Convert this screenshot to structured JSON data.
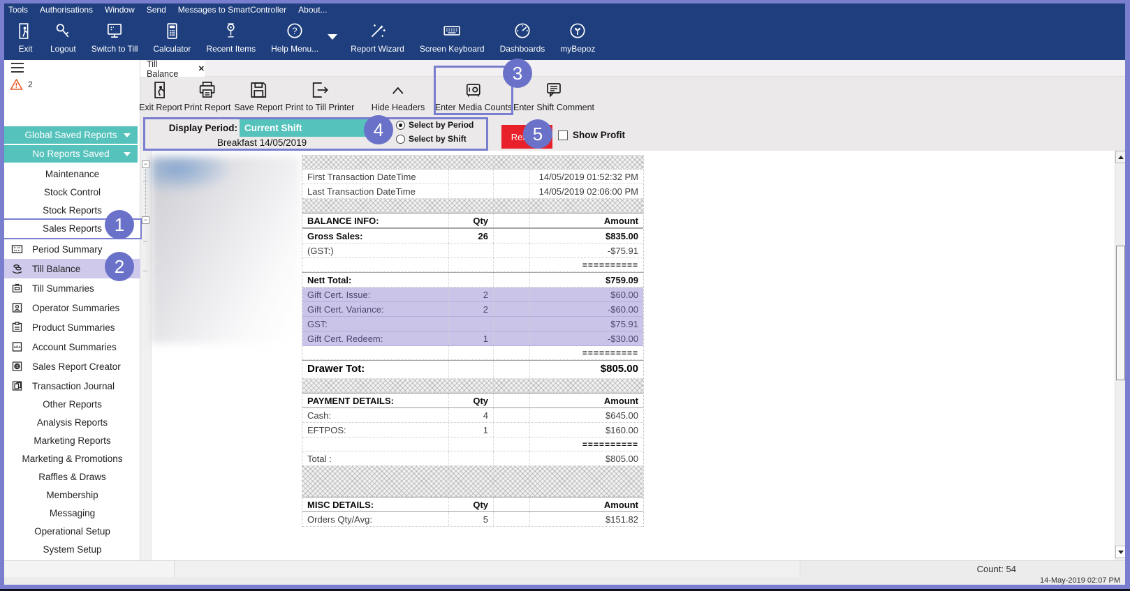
{
  "menubar": {
    "items": [
      "Tools",
      "Authorisations",
      "Window",
      "Send",
      "Messages to SmartController",
      "About..."
    ]
  },
  "toolbar": {
    "items": [
      {
        "label": "Exit",
        "icon": "exit-icon"
      },
      {
        "label": "Logout",
        "icon": "logout-key-icon"
      },
      {
        "label": "Switch to Till",
        "icon": "switch-to-till-icon"
      },
      {
        "label": "Calculator",
        "icon": "calculator-icon"
      },
      {
        "label": "Recent Items",
        "icon": "recent-items-icon"
      },
      {
        "label": "Help Menu...",
        "icon": "help-menu-icon"
      },
      {
        "label": "Report Wizard",
        "icon": "report-wizard-icon"
      },
      {
        "label": "Screen Keyboard",
        "icon": "screen-keyboard-icon"
      },
      {
        "label": "Dashboards",
        "icon": "dashboards-icon"
      },
      {
        "label": "myBepoz",
        "icon": "mybepoz-icon"
      }
    ]
  },
  "sidebar": {
    "warning_count": "2",
    "saved_buttons": [
      {
        "label": "Global Saved Reports"
      },
      {
        "label": "No Reports Saved"
      }
    ],
    "categories_top": [
      "Maintenance",
      "Stock Control",
      "Stock Reports",
      "Sales Reports"
    ],
    "report_items": [
      "Period Summary",
      "Till Balance",
      "Till Summaries",
      "Operator Summaries",
      "Product Summaries",
      "Account Summaries",
      "Sales Report Creator",
      "Transaction Journal"
    ],
    "categories_bottom": [
      "Other Reports",
      "Analysis Reports",
      "Marketing Reports",
      "Marketing & Promotions",
      "Raffles & Draws",
      "Membership",
      "Messaging",
      "Operational Setup",
      "System Setup"
    ],
    "selected_item": "Till Balance"
  },
  "tab": {
    "label": "Till Balance",
    "close_glyph": "✕"
  },
  "report_toolbar": {
    "items": [
      "Exit Report",
      "Print Report",
      "Save Report",
      "Print to Till Printer",
      "Hide Headers",
      "Enter Media Counts",
      "Enter Shift Comment"
    ]
  },
  "filter": {
    "display_period_label": "Display Period:",
    "display_period_value": "Current Shift",
    "shift_label": "Breakfast 14/05/2019",
    "radio_options": [
      {
        "label": "Select by Period",
        "selected": true
      },
      {
        "label": "Select by Shift",
        "selected": false
      }
    ],
    "refresh_label": "Refresh",
    "show_profit_label": "Show Profit",
    "show_profit_checked": false
  },
  "report": {
    "rows": [
      {
        "type": "hatch",
        "label": "",
        "qty": "",
        "amount": ""
      },
      {
        "type": "data",
        "label": "First Transaction DateTime",
        "qty": "",
        "amount": "14/05/2019 01:52:32 PM"
      },
      {
        "type": "data",
        "label": "Last Transaction DateTime",
        "qty": "",
        "amount": "14/05/2019 02:06:00 PM"
      },
      {
        "type": "hatch",
        "label": "",
        "qty": "",
        "amount": ""
      },
      {
        "type": "header",
        "label": "BALANCE INFO:",
        "qty": "Qty",
        "amount": "Amount"
      },
      {
        "type": "bold",
        "label": "Gross Sales:",
        "qty": "26",
        "amount": "$835.00"
      },
      {
        "type": "data",
        "label": "(GST:)",
        "qty": "",
        "amount": "-$75.91"
      },
      {
        "type": "equals",
        "label": "",
        "qty": "",
        "amount": "=========="
      },
      {
        "type": "bold",
        "label": "Nett Total:",
        "qty": "",
        "amount": "$759.09"
      },
      {
        "type": "lav",
        "label": "Gift Cert. Issue:",
        "qty": "2",
        "amount": "$60.00"
      },
      {
        "type": "lav",
        "label": "Gift Cert. Variance:",
        "qty": "2",
        "amount": "-$60.00"
      },
      {
        "type": "lav",
        "label": "GST:",
        "qty": "",
        "amount": "$75.91"
      },
      {
        "type": "lav",
        "label": "Gift Cert. Redeem:",
        "qty": "1",
        "amount": "-$30.00"
      },
      {
        "type": "equals",
        "label": "",
        "qty": "",
        "amount": "=========="
      },
      {
        "type": "total",
        "label": "Drawer Tot:",
        "qty": "",
        "amount": "$805.00"
      },
      {
        "type": "hatch",
        "label": "",
        "qty": "",
        "amount": ""
      },
      {
        "type": "header",
        "label": "PAYMENT DETAILS:",
        "qty": "Qty",
        "amount": "Amount"
      },
      {
        "type": "data",
        "label": "Cash:",
        "qty": "4",
        "amount": "$645.00"
      },
      {
        "type": "data",
        "label": "EFTPOS:",
        "qty": "1",
        "amount": "$160.00"
      },
      {
        "type": "equals",
        "label": "",
        "qty": "",
        "amount": "=========="
      },
      {
        "type": "data",
        "label": "Total :",
        "qty": "",
        "amount": "$805.00"
      },
      {
        "type": "hatch tall",
        "label": "",
        "qty": "",
        "amount": ""
      },
      {
        "type": "header",
        "label": "MISC DETAILS:",
        "qty": "Qty",
        "amount": "Amount"
      },
      {
        "type": "data",
        "label": "Orders Qty/Avg:",
        "qty": "5",
        "amount": "$151.82"
      }
    ]
  },
  "status": {
    "count": "Count: 54",
    "datetime": "14-May-2019  02:07 PM"
  },
  "annotations": {
    "steps": [
      "1",
      "2",
      "3",
      "4",
      "5"
    ]
  },
  "colors": {
    "navy": "#1e3e7d",
    "periwinkle": "#7a7ecf",
    "badge": "#6a71c8",
    "teal": "#56c2bc",
    "lavender_row": "#c9c4e8",
    "refresh_red": "#e8202a",
    "warning_orange": "#e85c2c"
  }
}
